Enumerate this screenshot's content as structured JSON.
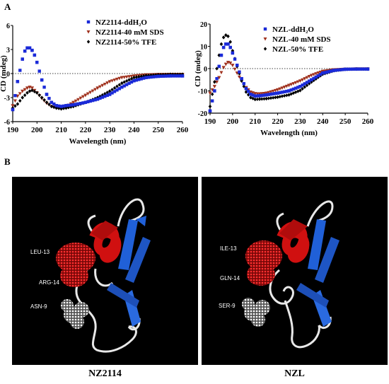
{
  "panels": {
    "a_letter": "A",
    "b_letter": "B"
  },
  "colors": {
    "s1": "#1a2ad8",
    "s2": "#a0321e",
    "s3": "#000000",
    "helix": "#d01010",
    "sheet": "#2060d8",
    "coil": "#e8e8e8"
  },
  "chart_data": [
    {
      "type": "scatter",
      "xlabel": "Wavelength (nm)",
      "ylabel": "CD (mdeg)",
      "xlim": [
        190,
        260
      ],
      "ylim": [
        -6,
        6
      ],
      "xticks": [
        "190",
        "200",
        "210",
        "220",
        "230",
        "240",
        "250",
        "260"
      ],
      "yticks": [
        "-6",
        "-3",
        "0",
        "3",
        "6"
      ],
      "zero_line": "dotted",
      "legend_position": "top-right",
      "series": [
        {
          "name": "NZ2114-ddH₂O",
          "marker": "square",
          "x": [
            190,
            192,
            194,
            195,
            196,
            197,
            198,
            199,
            200,
            202,
            204,
            206,
            208,
            210,
            212,
            215,
            220,
            225,
            230,
            235,
            240,
            245,
            250,
            255,
            260
          ],
          "y": [
            -4.5,
            -1.0,
            1.8,
            2.8,
            3.2,
            3.2,
            2.9,
            2.3,
            1.4,
            -0.8,
            -2.6,
            -3.6,
            -4.0,
            -4.1,
            -4.0,
            -3.9,
            -3.6,
            -3.2,
            -2.6,
            -1.7,
            -0.9,
            -0.5,
            -0.35,
            -0.3,
            -0.3
          ]
        },
        {
          "name": "NZ2114-40 mM SDS",
          "marker": "triangle-down",
          "x": [
            190,
            192,
            194,
            196,
            197,
            198,
            200,
            202,
            204,
            206,
            208,
            210,
            212,
            215,
            220,
            225,
            230,
            235,
            240,
            245,
            250,
            255,
            260
          ],
          "y": [
            -4.0,
            -2.8,
            -2.2,
            -1.8,
            -1.7,
            -1.8,
            -2.4,
            -3.1,
            -3.7,
            -4.1,
            -4.3,
            -4.3,
            -4.1,
            -3.6,
            -2.7,
            -1.8,
            -1.0,
            -0.5,
            -0.3,
            -0.15,
            -0.1,
            -0.1,
            -0.1
          ]
        },
        {
          "name": "NZ2114-50% TFE",
          "marker": "diamond",
          "x": [
            190,
            192,
            194,
            196,
            197,
            198,
            200,
            202,
            204,
            206,
            208,
            210,
            212,
            215,
            220,
            225,
            230,
            235,
            240,
            245,
            250,
            255,
            260
          ],
          "y": [
            -4.3,
            -3.8,
            -3.0,
            -2.4,
            -2.2,
            -2.1,
            -2.4,
            -3.0,
            -3.6,
            -4.1,
            -4.3,
            -4.4,
            -4.3,
            -4.1,
            -3.6,
            -3.0,
            -2.2,
            -1.2,
            -0.5,
            -0.25,
            -0.15,
            -0.1,
            -0.1
          ]
        }
      ]
    },
    {
      "type": "scatter",
      "xlabel": "Wavelength (nm)",
      "ylabel": "CD (mdeg)",
      "xlim": [
        190,
        260
      ],
      "ylim": [
        -20,
        20
      ],
      "xticks": [
        "190",
        "200",
        "210",
        "220",
        "230",
        "240",
        "250",
        "260"
      ],
      "yticks": [
        "-20",
        "-10",
        "0",
        "10",
        "20"
      ],
      "zero_line": "dotted",
      "legend_position": "top-right",
      "series": [
        {
          "name": "NZL-ddH₂O",
          "marker": "square",
          "x": [
            190,
            192,
            194,
            195,
            196,
            197,
            198,
            199,
            200,
            202,
            204,
            206,
            208,
            210,
            212,
            215,
            220,
            225,
            230,
            235,
            240,
            245,
            250,
            255,
            260
          ],
          "y": [
            -19,
            -10,
            1,
            6,
            9.5,
            11,
            11,
            9.5,
            7,
            1.5,
            -4.5,
            -9,
            -11.5,
            -12.3,
            -12.2,
            -11.8,
            -11,
            -10,
            -8,
            -5,
            -2,
            -0.8,
            -0.3,
            -0.2,
            -0.2
          ]
        },
        {
          "name": "NZL-40 mM SDS",
          "marker": "triangle-down",
          "x": [
            190,
            192,
            194,
            196,
            197,
            198,
            199,
            200,
            202,
            204,
            206,
            208,
            210,
            212,
            215,
            220,
            225,
            230,
            235,
            240,
            245,
            250,
            255,
            260
          ],
          "y": [
            -11,
            -8,
            -4,
            0.5,
            2,
            2.8,
            2.5,
            1.5,
            -2,
            -5.5,
            -8.5,
            -10.5,
            -11.2,
            -11.3,
            -11,
            -9.5,
            -7.5,
            -5.5,
            -3,
            -1.2,
            -0.5,
            -0.2,
            -0.1,
            -0.1
          ]
        },
        {
          "name": "NZL-50% TFE",
          "marker": "diamond",
          "x": [
            190,
            192,
            194,
            195,
            196,
            197,
            198,
            199,
            200,
            202,
            204,
            206,
            208,
            210,
            212,
            215,
            220,
            225,
            230,
            235,
            240,
            245,
            250,
            255,
            260
          ],
          "y": [
            -17,
            -6,
            6,
            11,
            14,
            15,
            14.5,
            12,
            8,
            1,
            -5.5,
            -10.5,
            -13,
            -13.8,
            -13.7,
            -13.5,
            -12.8,
            -11.8,
            -9.8,
            -6,
            -2.5,
            -0.9,
            -0.3,
            -0.2,
            -0.2
          ]
        }
      ]
    }
  ],
  "structures": [
    {
      "caption": "NZ2114",
      "labels": [
        "LEU-13",
        "ARG-14",
        "ASN-9"
      ]
    },
    {
      "caption": "NZL",
      "labels": [
        "ILE-13",
        "GLN-14",
        "SER-9"
      ]
    }
  ]
}
